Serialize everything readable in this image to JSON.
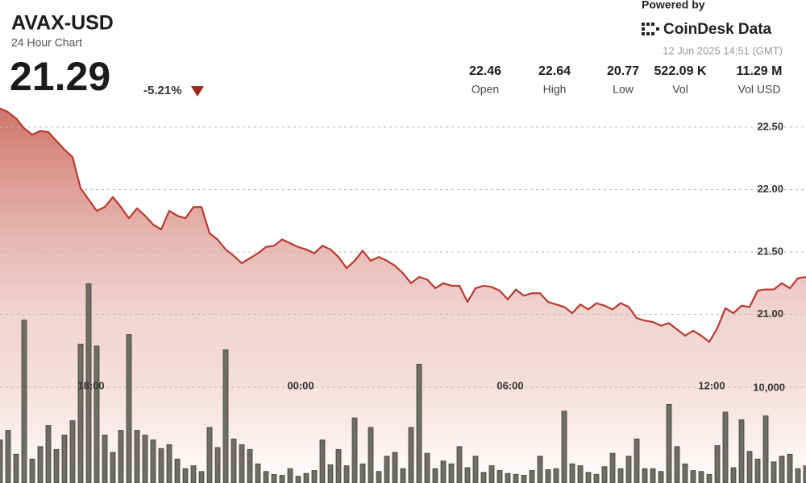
{
  "header": {
    "symbol": "AVAX-USD",
    "subtitle": "24 Hour Chart",
    "price": "21.29",
    "change": "-5.21%",
    "powered_by": "Powered by",
    "brand": "CoinDesk Data",
    "timestamp": "12 Jun 2025 14:51 (GMT)",
    "stats": [
      {
        "value": "22.46",
        "label": "Open"
      },
      {
        "value": "22.64",
        "label": "High"
      },
      {
        "value": "20.77",
        "label": "Low"
      },
      {
        "value": "522.09 K",
        "label": "Vol"
      },
      {
        "value": "11.29 M",
        "label": "Vol USD"
      }
    ]
  },
  "chart_data": {
    "type": "line",
    "categories": [
      null,
      null,
      null,
      null,
      null,
      null,
      null,
      null,
      null,
      null,
      null,
      "18:00",
      null,
      null,
      null,
      null,
      null,
      null,
      null,
      null,
      null,
      null,
      null,
      null,
      null,
      null,
      null,
      null,
      null,
      null,
      null,
      null,
      null,
      null,
      null,
      null,
      null,
      "00:00",
      null,
      null,
      null,
      null,
      null,
      null,
      null,
      null,
      null,
      null,
      null,
      null,
      null,
      null,
      null,
      null,
      null,
      null,
      null,
      null,
      null,
      null,
      null,
      null,
      null,
      "06:00",
      null,
      null,
      null,
      null,
      null,
      null,
      null,
      null,
      null,
      null,
      null,
      null,
      null,
      null,
      null,
      null,
      null,
      null,
      null,
      null,
      null,
      null,
      null,
      null,
      "12:00",
      null,
      null,
      null,
      null,
      null,
      null,
      null,
      null,
      null,
      null,
      null,
      null
    ],
    "series": [
      {
        "name": "Price",
        "color": "#b83a2f",
        "values": [
          22.65,
          22.62,
          22.57,
          22.49,
          22.44,
          22.47,
          22.46,
          22.39,
          22.32,
          22.26,
          22.01,
          21.92,
          21.83,
          21.86,
          21.94,
          21.86,
          21.77,
          21.85,
          21.79,
          21.72,
          21.68,
          21.83,
          21.79,
          21.77,
          21.86,
          21.86,
          21.65,
          21.6,
          21.52,
          21.47,
          21.41,
          21.45,
          21.49,
          21.54,
          21.55,
          21.6,
          21.57,
          21.54,
          21.52,
          21.49,
          21.55,
          21.52,
          21.46,
          21.37,
          21.43,
          21.51,
          21.43,
          21.46,
          21.43,
          21.39,
          21.33,
          21.25,
          21.3,
          21.28,
          21.21,
          21.25,
          21.23,
          21.23,
          21.1,
          21.21,
          21.23,
          21.22,
          21.19,
          21.12,
          21.2,
          21.15,
          21.17,
          21.17,
          21.1,
          21.08,
          21.06,
          21.01,
          21.08,
          21.04,
          21.09,
          21.07,
          21.04,
          21.09,
          21.06,
          20.97,
          20.95,
          20.94,
          20.91,
          20.93,
          20.88,
          20.83,
          20.87,
          20.83,
          20.78,
          20.89,
          21.05,
          21.01,
          21.07,
          21.06,
          21.19,
          21.2,
          21.2,
          21.25,
          21.21,
          21.29,
          21.3
        ]
      },
      {
        "name": "Volume",
        "color": "#6e6e66",
        "axis": "y2",
        "values": [
          4500,
          5500,
          3000,
          17000,
          2500,
          3800,
          6000,
          3500,
          5000,
          6500,
          14500,
          20800,
          14300,
          5000,
          3200,
          5500,
          15500,
          5500,
          5000,
          4500,
          3600,
          4000,
          2500,
          1500,
          1800,
          1200,
          5800,
          3700,
          13900,
          4600,
          4000,
          3500,
          2000,
          1200,
          900,
          800,
          1500,
          700,
          1000,
          1300,
          4500,
          1900,
          3500,
          1800,
          6800,
          2000,
          5800,
          1200,
          2800,
          3200,
          1500,
          5800,
          12400,
          3100,
          1500,
          2300,
          2000,
          3800,
          1600,
          2800,
          1100,
          1800,
          1300,
          1000,
          900,
          800,
          1300,
          2800,
          1400,
          1500,
          7500,
          2000,
          1800,
          1100,
          900,
          1700,
          3100,
          1500,
          2800,
          4600,
          1500,
          1500,
          1200,
          8200,
          3800,
          2000,
          1300,
          1200,
          900,
          3900,
          7400,
          1600,
          6600,
          3300,
          2500,
          7000,
          2200,
          2800,
          3000,
          1500,
          1800
        ]
      }
    ],
    "ylim": [
      19.65,
      22.68
    ],
    "yticks": [
      {
        "value": 21,
        "label": "21.00"
      },
      {
        "value": 21.5,
        "label": "21.50"
      },
      {
        "value": 22,
        "label": "22.00"
      },
      {
        "value": 22.5,
        "label": "22.50"
      }
    ],
    "y2lim": [
      0,
      30000
    ],
    "y2ticks": [
      {
        "value": 10000,
        "label": "10,000"
      }
    ],
    "grid": true
  }
}
